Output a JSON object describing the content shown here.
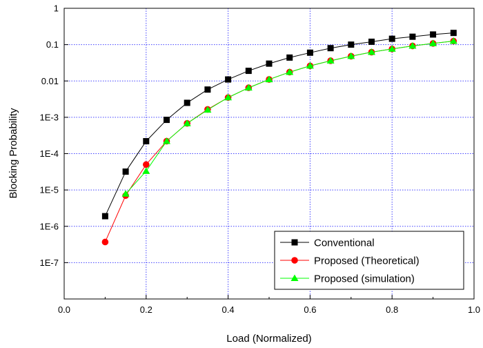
{
  "chart_data": {
    "type": "line",
    "xlabel": "Load (Normalized)",
    "ylabel": "Blocking Probability",
    "xlim": [
      0.0,
      1.0
    ],
    "ylim": [
      1e-08,
      1
    ],
    "yscale": "log",
    "grid": true,
    "legend_position": "bottom-right",
    "x_ticks": [
      "0.0",
      "0.2",
      "0.4",
      "0.6",
      "0.8",
      "1.0"
    ],
    "y_ticks": [
      "1",
      "0.1",
      "0.01",
      "1E-3",
      "1E-4",
      "1E-5",
      "1E-6",
      "1E-7"
    ],
    "series": [
      {
        "name": "Conventional",
        "marker": "square",
        "color": "#000000",
        "x": [
          0.1,
          0.15,
          0.2,
          0.25,
          0.3,
          0.35,
          0.4,
          0.45,
          0.5,
          0.55,
          0.6,
          0.65,
          0.7,
          0.75,
          0.8,
          0.85,
          0.9,
          0.95
        ],
        "y": [
          1.9e-06,
          3.2e-05,
          0.00022,
          0.00085,
          0.0025,
          0.0058,
          0.011,
          0.019,
          0.03,
          0.044,
          0.06,
          0.08,
          0.1,
          0.12,
          0.145,
          0.165,
          0.19,
          0.21
        ]
      },
      {
        "name": "Proposed (Theoretical)",
        "marker": "circle",
        "color": "#ff0000",
        "x": [
          0.1,
          0.15,
          0.2,
          0.25,
          0.3,
          0.35,
          0.4,
          0.45,
          0.5,
          0.55,
          0.6,
          0.65,
          0.7,
          0.75,
          0.8,
          0.85,
          0.9,
          0.95
        ],
        "y": [
          3.7e-07,
          7e-06,
          5e-05,
          0.00022,
          0.00068,
          0.00165,
          0.0035,
          0.0065,
          0.011,
          0.0175,
          0.026,
          0.036,
          0.048,
          0.062,
          0.076,
          0.092,
          0.108,
          0.125
        ]
      },
      {
        "name": "Proposed (simulation)",
        "marker": "triangle",
        "color": "#00ff00",
        "x": [
          0.15,
          0.2,
          0.25,
          0.3,
          0.35,
          0.4,
          0.45,
          0.5,
          0.55,
          0.6,
          0.65,
          0.7,
          0.75,
          0.8,
          0.85,
          0.9,
          0.95
        ],
        "y": [
          7.8e-06,
          3.3e-05,
          0.00022,
          0.00068,
          0.0016,
          0.0035,
          0.0065,
          0.011,
          0.0175,
          0.026,
          0.036,
          0.048,
          0.062,
          0.076,
          0.092,
          0.108,
          0.125
        ]
      }
    ]
  }
}
